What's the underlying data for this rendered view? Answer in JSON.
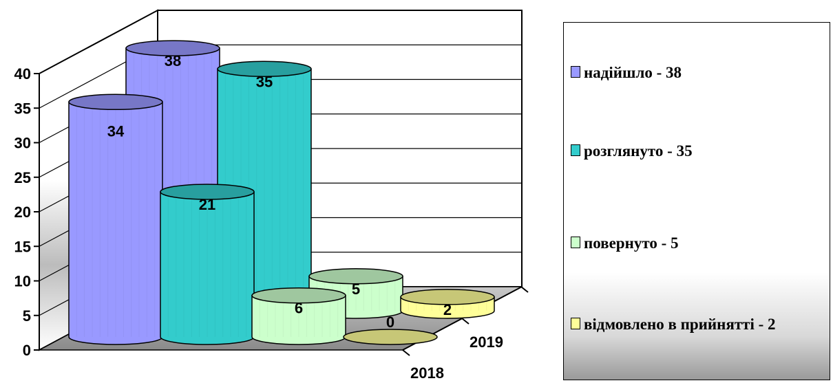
{
  "chart_data": {
    "type": "bar",
    "style": "3d-cylinder",
    "categories": [
      "2018",
      "2019"
    ],
    "series": [
      {
        "name": "надійшло - 38",
        "values": [
          34,
          38
        ],
        "color": "#9999ff"
      },
      {
        "name": "розглянуто - 35",
        "values": [
          21,
          35
        ],
        "color": "#33cccc"
      },
      {
        "name": "повернуто - 5",
        "values": [
          6,
          5
        ],
        "color": "#ccffcc"
      },
      {
        "name": "відмовлено в прийнятті - 2",
        "values": [
          0,
          2
        ],
        "color": "#ffff99"
      }
    ],
    "yticks": [
      "0",
      "5",
      "10",
      "15",
      "20",
      "25",
      "30",
      "35",
      "40"
    ],
    "ylim": [
      0,
      40
    ],
    "grid": true,
    "legend": "right"
  }
}
